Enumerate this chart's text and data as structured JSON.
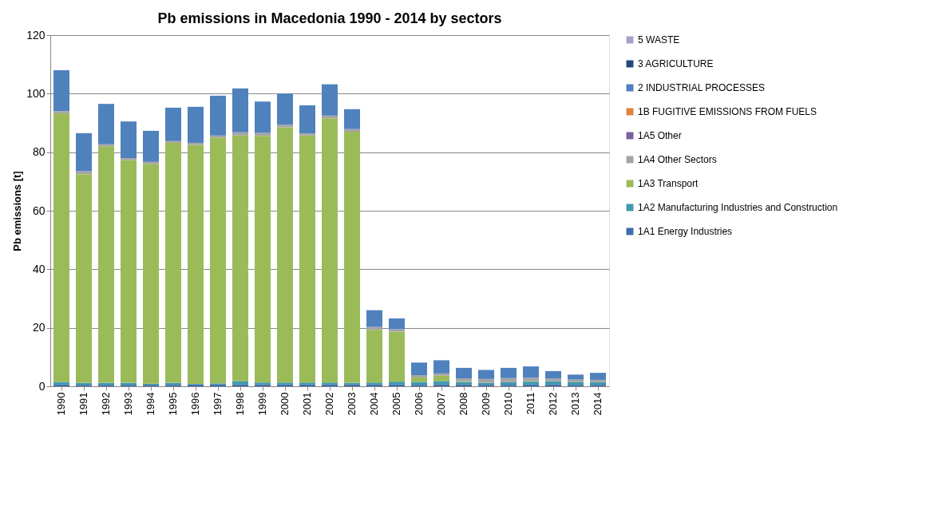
{
  "chart_data": {
    "type": "bar",
    "title": "Pb emissions in Macedonia 1990 - 2014 by sectors",
    "ylabel": "Pb emissions [t]",
    "categories": [
      "1990",
      "1991",
      "1992",
      "1993",
      "1994",
      "1995",
      "1996",
      "1997",
      "1998",
      "1999",
      "2000",
      "2001",
      "2002",
      "2003",
      "2004",
      "2005",
      "2006",
      "2007",
      "2008",
      "2009",
      "2010",
      "2011",
      "2012",
      "2013",
      "2014"
    ],
    "stacked": true,
    "ylim": [
      0,
      120
    ],
    "yticks": [
      0,
      20,
      40,
      60,
      80,
      100,
      120
    ],
    "grid": "y",
    "legend": "right",
    "series": [
      {
        "name": "1A1 Energy Industries",
        "color": "#3f6ea8",
        "values": [
          0.6,
          0.5,
          0.5,
          0.5,
          0.5,
          0.5,
          0.6,
          0.6,
          0.6,
          0.6,
          0.6,
          0.6,
          0.6,
          0.6,
          0.6,
          0.6,
          0.5,
          0.6,
          0.6,
          0.5,
          0.5,
          0.6,
          0.6,
          0.5,
          0.5
        ]
      },
      {
        "name": "1A2 Manufacturing Industries and Construction",
        "color": "#4198af",
        "values": [
          0.9,
          0.7,
          0.7,
          0.7,
          0.4,
          0.7,
          0.2,
          0.4,
          1.2,
          0.7,
          0.7,
          0.7,
          0.7,
          0.6,
          0.7,
          1.0,
          1.0,
          1.2,
          0.9,
          0.7,
          0.9,
          1.0,
          1.1,
          0.9,
          0.9
        ]
      },
      {
        "name": "1A3 Transport",
        "color": "#9bbb59",
        "values": [
          91.8,
          71.3,
          80.8,
          76.1,
          75.1,
          82.0,
          81.7,
          84.0,
          83.9,
          84.3,
          87.2,
          84.4,
          90.3,
          85.8,
          18.0,
          17.1,
          1.5,
          1.8,
          0.2,
          0,
          0,
          0.2,
          0,
          0,
          0
        ]
      },
      {
        "name": "1A4 Other Sectors",
        "color": "#a5a5a5",
        "values": [
          0.7,
          1.0,
          0.7,
          0.7,
          0.7,
          0.6,
          0.7,
          0.7,
          1.1,
          1.0,
          0.9,
          0.7,
          0.9,
          0.9,
          1.0,
          0.8,
          0.8,
          0.8,
          1.0,
          1.3,
          1.4,
          1.1,
          0.9,
          0.9,
          0.8
        ]
      },
      {
        "name": "1A5 Other",
        "color": "#7d5fa0",
        "values": [
          0,
          0,
          0,
          0,
          0,
          0,
          0,
          0,
          0,
          0,
          0,
          0,
          0,
          0,
          0,
          0,
          0,
          0,
          0,
          0,
          0,
          0,
          0,
          0,
          0
        ]
      },
      {
        "name": "1B FUGITIVE EMISSIONS FROM FUELS",
        "color": "#e0833c",
        "values": [
          0,
          0,
          0,
          0,
          0,
          0,
          0,
          0,
          0,
          0,
          0,
          0,
          0,
          0,
          0,
          0,
          0,
          0,
          0,
          0,
          0,
          0,
          0,
          0,
          0
        ]
      },
      {
        "name": "2 INDUSTRIAL PROCESSES",
        "color": "#4f81bd",
        "values": [
          14,
          13,
          13.8,
          12.5,
          10.6,
          11.4,
          12.3,
          13.6,
          15,
          10.7,
          10.6,
          9.6,
          10.7,
          6.8,
          5.7,
          3.7,
          4.3,
          4.5,
          3.6,
          3.1,
          3.5,
          3.9,
          2.6,
          1.7,
          2.4
        ]
      },
      {
        "name": "3 AGRICULTURE",
        "color": "#1f497d",
        "values": [
          0,
          0,
          0,
          0,
          0,
          0,
          0,
          0,
          0,
          0,
          0,
          0,
          0,
          0,
          0,
          0,
          0,
          0,
          0,
          0,
          0,
          0,
          0,
          0,
          0
        ]
      },
      {
        "name": "5 WASTE",
        "color": "#a9a1c9",
        "values": [
          0,
          0,
          0,
          0,
          0,
          0,
          0,
          0,
          0,
          0,
          0,
          0,
          0,
          0,
          0,
          0,
          0,
          0,
          0,
          0,
          0,
          0,
          0,
          0,
          0
        ]
      }
    ]
  }
}
